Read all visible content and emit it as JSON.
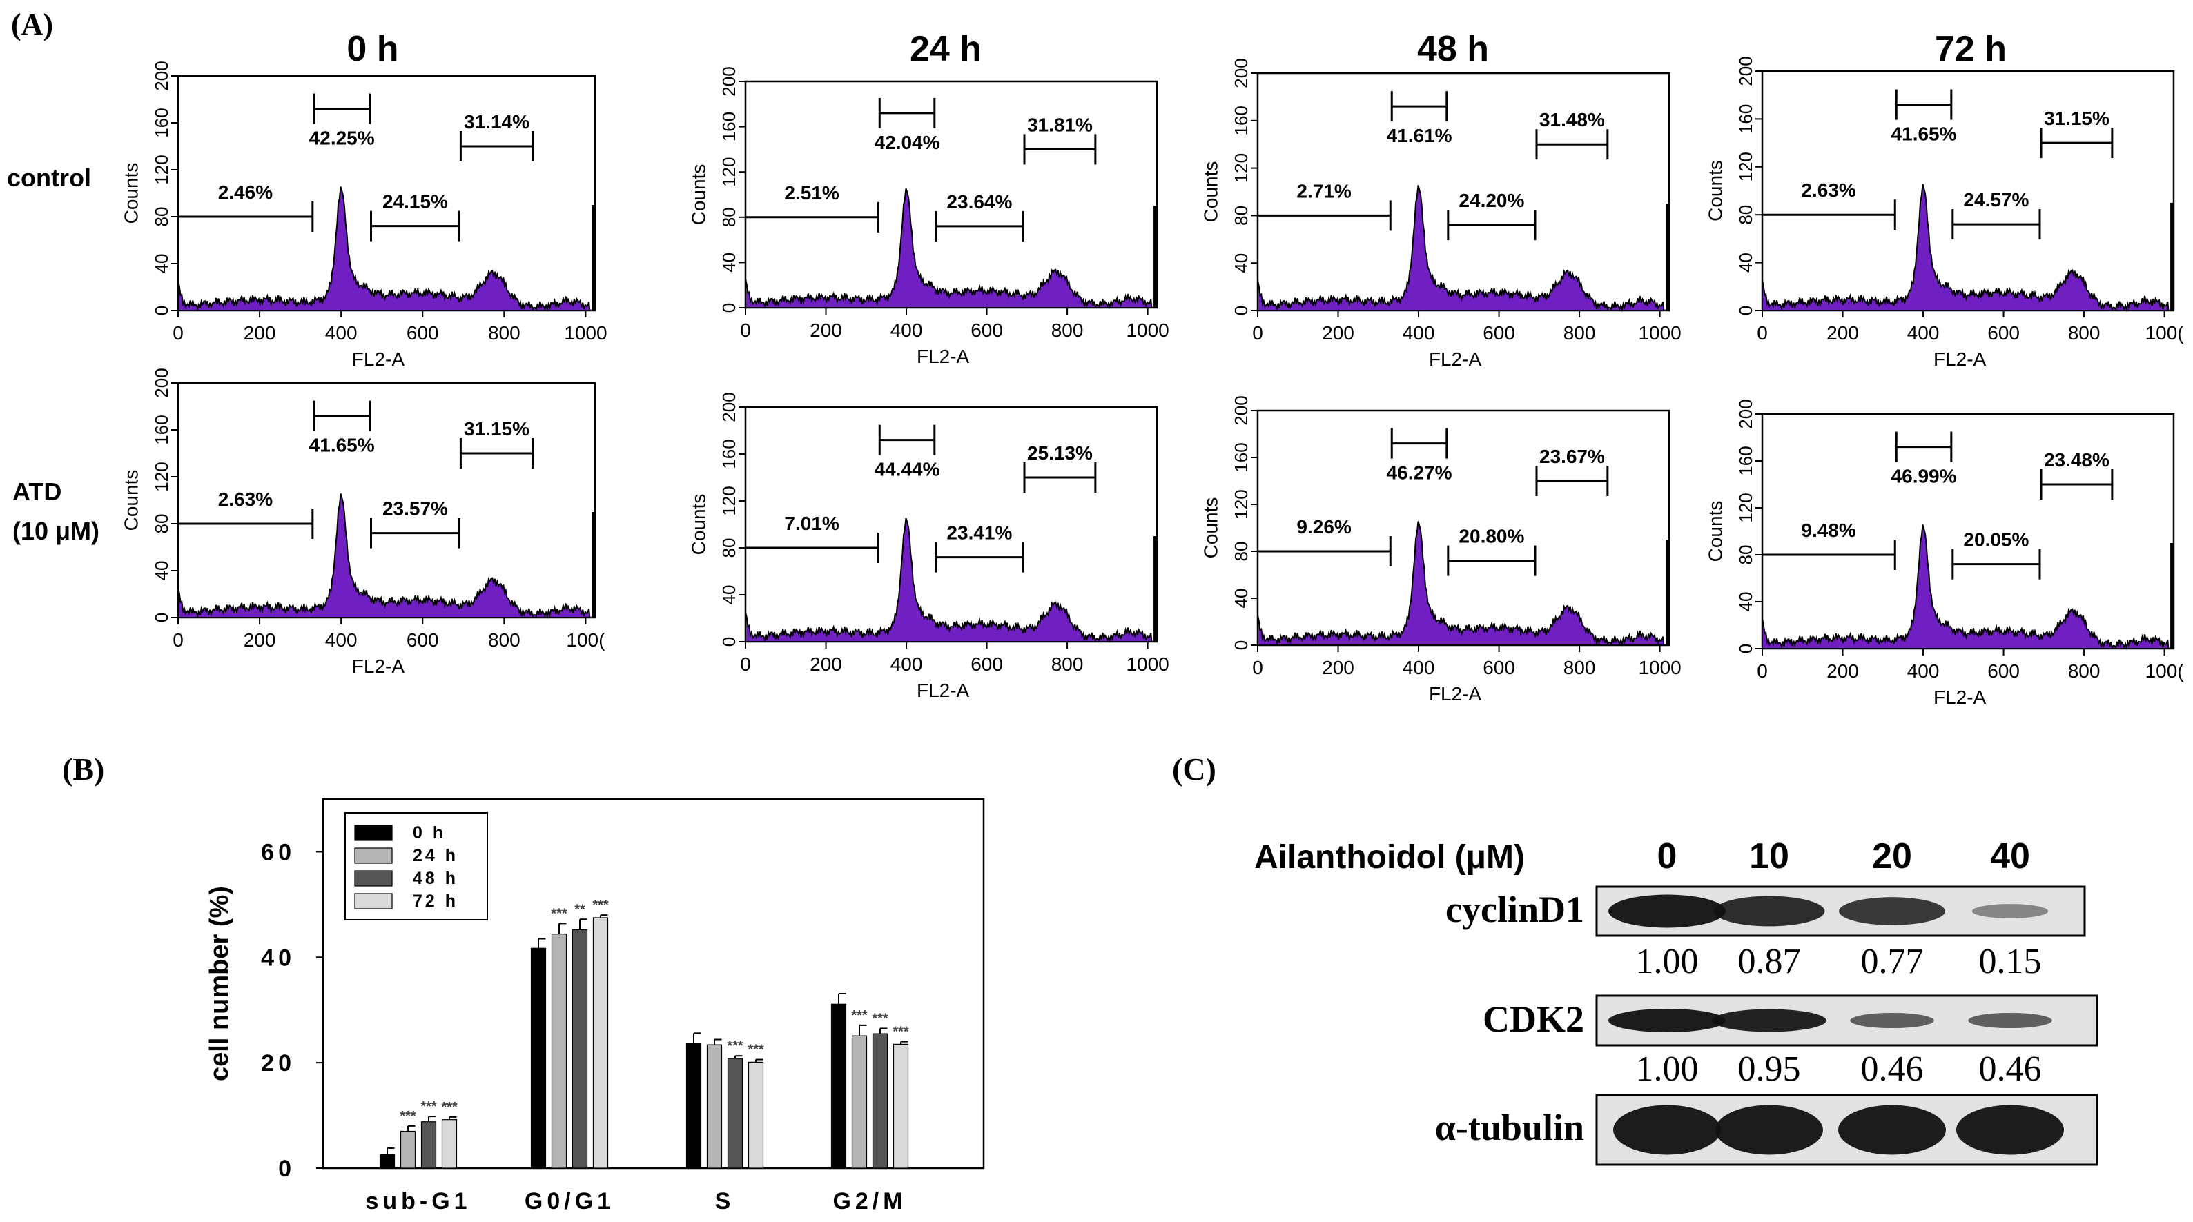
{
  "panels": {
    "a": "(A)",
    "b": "(B)",
    "c": "(C)"
  },
  "colors": {
    "histogram_fill": "#6f1fc2",
    "bar_0h": "#000000",
    "bar_24h": "#b4b4b4",
    "bar_48h": "#555555",
    "bar_72h": "#dadada"
  },
  "flow": {
    "timepoints": [
      "0 h",
      "24 h",
      "48 h",
      "72 h"
    ],
    "rows": [
      "control",
      "ATD",
      "(10 μM)"
    ],
    "x_axis_label": "FL2-A",
    "y_axis_label": "Counts",
    "x_ticks": [
      "0",
      "200",
      "400",
      "600",
      "800",
      "1000"
    ],
    "x_ticks_cut": "100(",
    "y_ticks": [
      "0",
      "40",
      "80",
      "120",
      "160",
      "200"
    ],
    "x_range": [
      0,
      1023
    ],
    "y_range": [
      0,
      200
    ],
    "gates": {
      "subG1": [
        0,
        330
      ],
      "G0G1": [
        330,
        470
      ],
      "S": [
        470,
        690
      ],
      "G2M": [
        690,
        870
      ]
    },
    "control": [
      {
        "time": "0 h",
        "subG1": "2.46%",
        "G0G1": "42.25%",
        "S": "24.15%",
        "G2M": "31.14%"
      },
      {
        "time": "24 h",
        "subG1": "2.51%",
        "G0G1": "42.04%",
        "S": "23.64%",
        "G2M": "31.81%"
      },
      {
        "time": "48 h",
        "subG1": "2.71%",
        "G0G1": "41.61%",
        "S": "24.20%",
        "G2M": "31.48%"
      },
      {
        "time": "72 h",
        "subG1": "2.63%",
        "G0G1": "41.65%",
        "S": "24.57%",
        "G2M": "31.15%"
      }
    ],
    "atd": [
      {
        "time": "0 h",
        "subG1": "2.63%",
        "G0G1": "41.65%",
        "S": "23.57%",
        "G2M": "31.15%"
      },
      {
        "time": "24 h",
        "subG1": "7.01%",
        "G0G1": "44.44%",
        "S": "23.41%",
        "G2M": "25.13%"
      },
      {
        "time": "48 h",
        "subG1": "9.26%",
        "G0G1": "46.27%",
        "S": "20.80%",
        "G2M": "23.67%"
      },
      {
        "time": "72 h",
        "subG1": "9.48%",
        "G0G1": "46.99%",
        "S": "20.05%",
        "G2M": "23.48%"
      }
    ]
  },
  "chart_data": {
    "type": "bar",
    "title": "",
    "xlabel": "",
    "ylabel": "cell number (%)",
    "ylim": [
      0,
      70
    ],
    "yticks": [
      "0",
      "20",
      "40",
      "60"
    ],
    "categories": [
      "sub-G1",
      "G0/G1",
      "S",
      "G2/M"
    ],
    "legend_position": "top-left",
    "series": [
      {
        "name": "0 h",
        "values": [
          2.6,
          41.7,
          23.6,
          31.1
        ],
        "errors": [
          1.2,
          1.8,
          2.0,
          2.0
        ],
        "marks": [
          "",
          "",
          "",
          ""
        ]
      },
      {
        "name": "24 h",
        "values": [
          7.0,
          44.4,
          23.4,
          25.1
        ],
        "errors": [
          1.0,
          2.0,
          1.0,
          2.0
        ],
        "marks": [
          "***",
          "***",
          "",
          "***"
        ]
      },
      {
        "name": "48 h",
        "values": [
          8.8,
          45.2,
          20.8,
          25.5
        ],
        "errors": [
          1.0,
          2.0,
          0.5,
          1.0
        ],
        "marks": [
          "***",
          "**",
          "***",
          "***"
        ]
      },
      {
        "name": "72 h",
        "values": [
          9.2,
          47.5,
          20.1,
          23.5
        ],
        "errors": [
          0.5,
          0.5,
          0.5,
          0.5
        ],
        "marks": [
          "***",
          "***",
          "***",
          "***"
        ]
      }
    ]
  },
  "western": {
    "header_label": "Ailanthoidol (μM)",
    "concentrations": [
      "0",
      "10",
      "20",
      "40"
    ],
    "blots": [
      {
        "name": "cyclinD1",
        "ratios": [
          "1.00",
          "0.87",
          "0.77",
          "0.15"
        ],
        "intensity": [
          1.0,
          0.87,
          0.77,
          0.15
        ]
      },
      {
        "name": "CDK2",
        "ratios": [
          "1.00",
          "0.95",
          "0.46",
          "0.46"
        ],
        "intensity": [
          1.0,
          0.95,
          0.46,
          0.46
        ]
      },
      {
        "name": "α-tubulin",
        "ratios": [],
        "intensity": [
          1.0,
          1.0,
          1.0,
          1.0
        ]
      }
    ]
  }
}
